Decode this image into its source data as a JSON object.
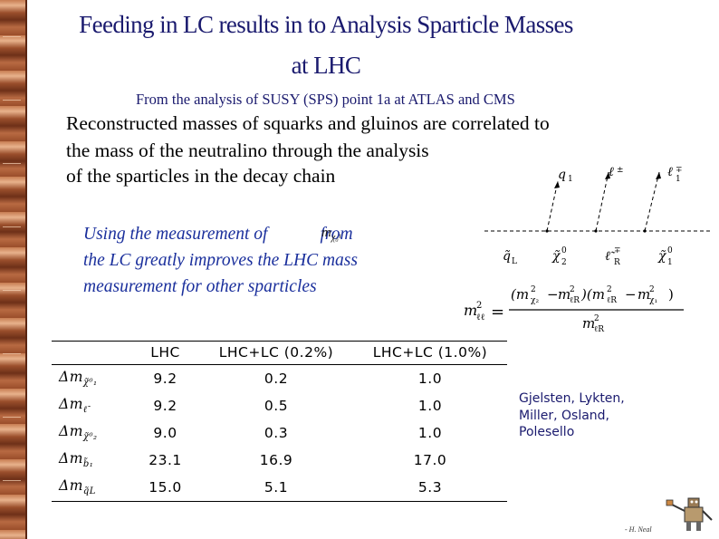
{
  "title_line1": "Feeding in LC results in to Analysis Sparticle Masses",
  "title_line2": "at LHC",
  "subtitle": "From the analysis of SUSY (SPS) point 1a at ATLAS and CMS",
  "paragraph": {
    "line1": "Reconstructed masses of squarks and gluinos are correlated to",
    "line2": "the mass of the neutralino through the analysis",
    "line3": "of the sparticles in the decay chain"
  },
  "highlight": {
    "line1a": "Using the measurement of",
    "symbol": "m",
    "line1b": "from",
    "line2": "the LC greatly improves the LHC mass",
    "line3": "measurement for other sparticles"
  },
  "diagram": {
    "top_labels": [
      "q",
      "ℓ",
      "ℓ"
    ],
    "bottom_labels": [
      "q̃",
      "χ̃",
      "ℓ̃",
      "χ̃"
    ],
    "formula_lhs": "m",
    "formula_eq": "="
  },
  "table": {
    "headers": [
      "",
      "LHC",
      "LHC+LC (0.2%)",
      "LHC+LC (1.0%)"
    ],
    "rows": [
      {
        "label": "Δm",
        "sub": "χ̃⁰₁",
        "values": [
          "9.2",
          "0.2",
          "1.0"
        ]
      },
      {
        "label": "Δm",
        "sub": "ℓ̃",
        "values": [
          "9.2",
          "0.5",
          "1.0"
        ]
      },
      {
        "label": "Δm",
        "sub": "χ̃⁰₂",
        "values": [
          "9.0",
          "0.3",
          "1.0"
        ]
      },
      {
        "label": "Δm",
        "sub": "b̃₁",
        "values": [
          "23.1",
          "16.9",
          "17.0"
        ]
      },
      {
        "label": "Δm",
        "sub": "q̃L",
        "values": [
          "15.0",
          "5.1",
          "5.3"
        ]
      }
    ]
  },
  "authors": [
    "Gjelsten, Lykten,",
    "Miller, Osland,",
    "Polesello"
  ],
  "credit": "- H. Neal",
  "colors": {
    "title": "#1a1a6e",
    "italic_text": "#1a2f9c",
    "border": "#8a4a2e"
  }
}
